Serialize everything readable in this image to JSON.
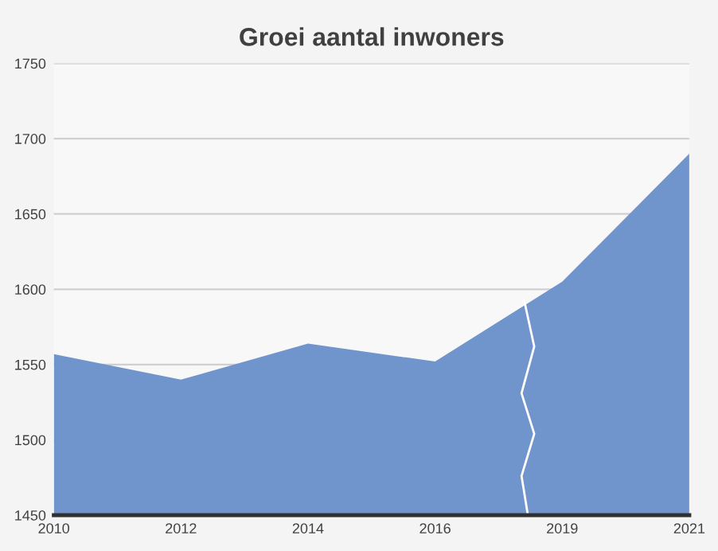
{
  "chart_data": {
    "type": "area",
    "title": "Groei aantal inwoners",
    "categories": [
      "2010",
      "2012",
      "2014",
      "2016",
      "2019",
      "2021"
    ],
    "series": [
      {
        "color": "#7094cc",
        "values": [
          1557,
          1540,
          1564,
          1552,
          1605,
          1690
        ]
      }
    ],
    "ylim": [
      1450,
      1750
    ],
    "yticks": [
      1450,
      1500,
      1550,
      1600,
      1650,
      1700,
      1750
    ],
    "grid": "y"
  }
}
